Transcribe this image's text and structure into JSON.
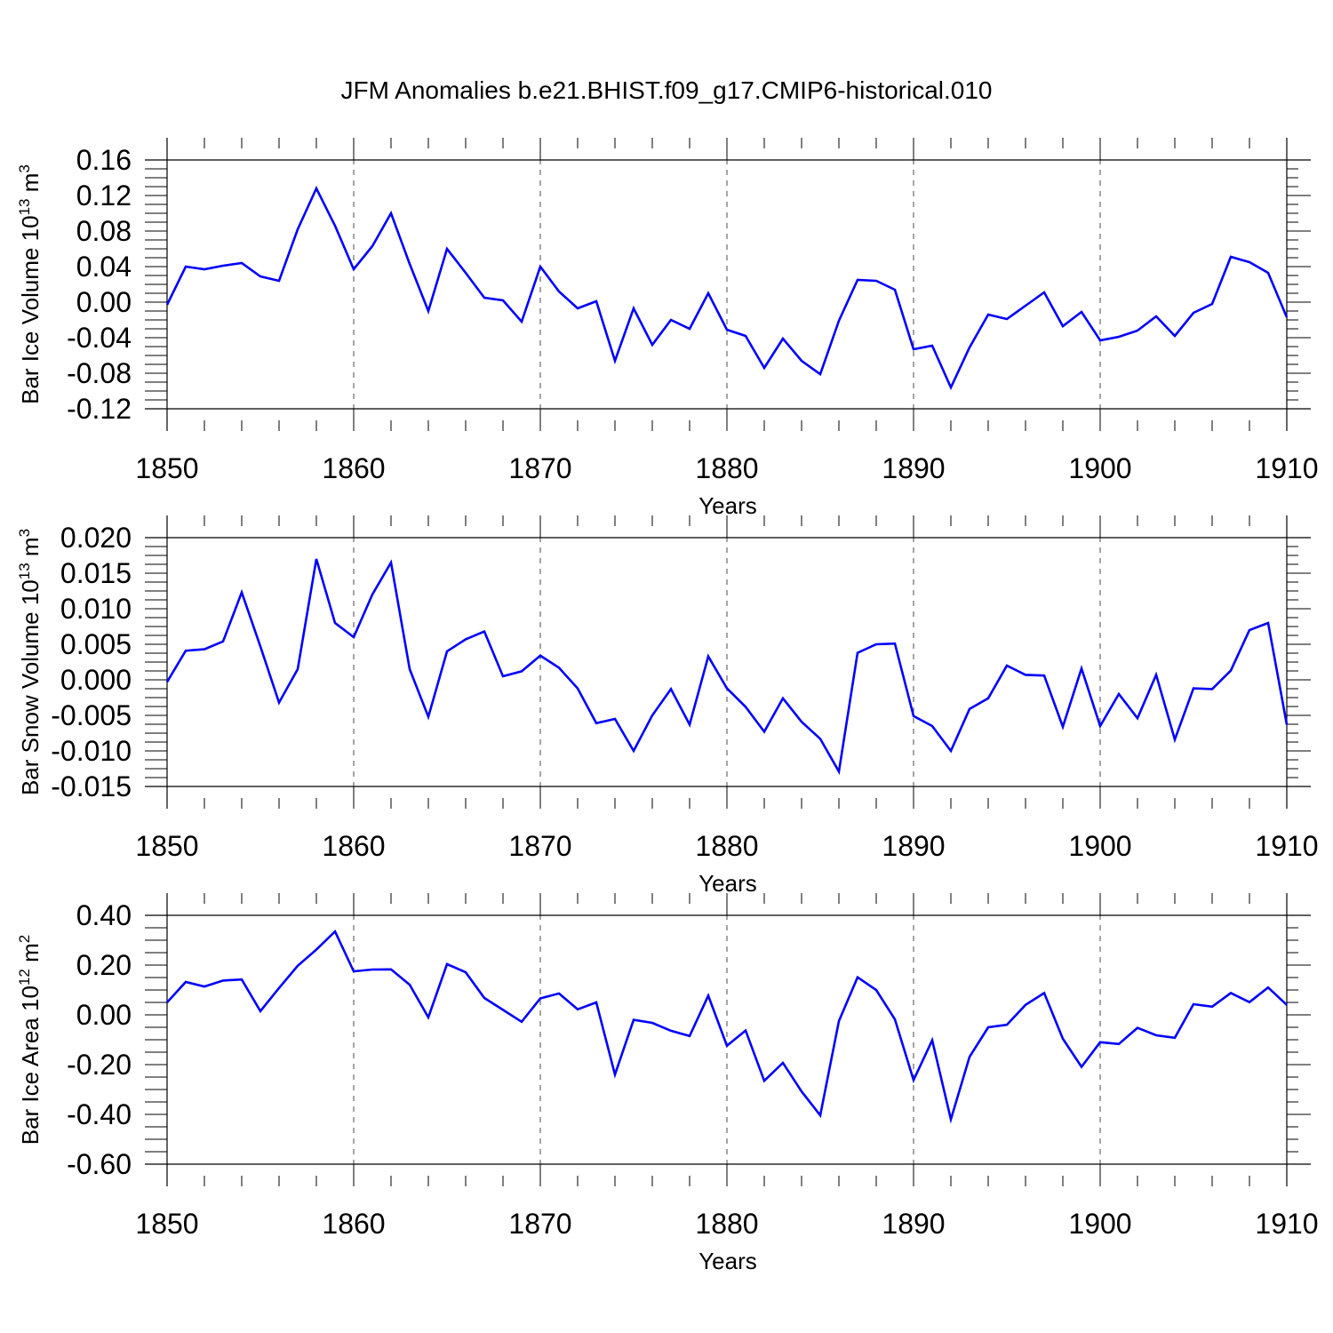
{
  "title": "JFM Anomalies b.e21.BHIST.f09_g17.CMIP6-historical.010",
  "colors": {
    "line": "#0000ff",
    "axis": "#000000"
  },
  "chart_data": [
    {
      "type": "line",
      "xlabel": "Years",
      "ylabel": "Bar Ice Volume 10",
      "ylabel_exp": "13",
      "ylabel_unit": " m",
      "ylabel_unit_exp": "3",
      "xlim": [
        1850,
        1910
      ],
      "ylim": [
        -0.12,
        0.16
      ],
      "xticks": [
        "1850",
        "1860",
        "1870",
        "1880",
        "1890",
        "1900",
        "1910"
      ],
      "yticks": [
        "0.16",
        "0.12",
        "0.08",
        "0.04",
        "0.00",
        "-0.04",
        "-0.08",
        "-0.12"
      ],
      "ytick_values": [
        0.16,
        0.12,
        0.08,
        0.04,
        0.0,
        -0.04,
        -0.08,
        -0.12
      ],
      "grid": "vertical dashed at major x ticks",
      "x_start": 1850,
      "values": [
        -0.003,
        0.04,
        0.037,
        0.041,
        0.044,
        0.029,
        0.024,
        0.082,
        0.128,
        0.086,
        0.037,
        0.063,
        0.1,
        0.043,
        -0.01,
        0.06,
        0.033,
        0.005,
        0.002,
        -0.022,
        0.04,
        0.012,
        -0.007,
        0.001,
        -0.066,
        -0.007,
        -0.048,
        -0.02,
        -0.03,
        0.01,
        -0.031,
        -0.038,
        -0.074,
        -0.041,
        -0.066,
        -0.081,
        -0.021,
        0.025,
        0.024,
        0.014,
        -0.053,
        -0.049,
        -0.096,
        -0.051,
        -0.014,
        -0.019,
        -0.004,
        0.011,
        -0.027,
        -0.011,
        -0.043,
        -0.039,
        -0.032,
        -0.016,
        -0.038,
        -0.012,
        -0.002,
        0.051,
        0.045,
        0.033,
        -0.017
      ]
    },
    {
      "type": "line",
      "xlabel": "Years",
      "ylabel": "Bar Snow Volume 10",
      "ylabel_exp": "13",
      "ylabel_unit": " m",
      "ylabel_unit_exp": "3",
      "xlim": [
        1850,
        1910
      ],
      "ylim": [
        -0.015,
        0.02
      ],
      "xticks": [
        "1850",
        "1860",
        "1870",
        "1880",
        "1890",
        "1900",
        "1910"
      ],
      "yticks": [
        "0.020",
        "0.015",
        "0.010",
        "0.005",
        "0.000",
        "-0.005",
        "-0.010",
        "-0.015"
      ],
      "ytick_values": [
        0.02,
        0.015,
        0.01,
        0.005,
        0.0,
        -0.005,
        -0.01,
        -0.015
      ],
      "grid": "vertical dashed at major x ticks",
      "x_start": 1850,
      "values": [
        -0.0003,
        0.0041,
        0.0043,
        0.0054,
        0.0123,
        0.0047,
        -0.0032,
        0.0015,
        0.017,
        0.008,
        0.006,
        0.012,
        0.0165,
        0.0015,
        -0.0052,
        0.004,
        0.0057,
        0.0068,
        0.0005,
        0.0012,
        0.0034,
        0.0017,
        -0.0012,
        -0.0061,
        -0.0055,
        -0.01,
        -0.005,
        -0.0013,
        -0.0063,
        0.0033,
        -0.0012,
        -0.0038,
        -0.0073,
        -0.0026,
        -0.0059,
        -0.0083,
        -0.0129,
        0.0038,
        0.005,
        0.0051,
        -0.0051,
        -0.0065,
        -0.01,
        -0.0041,
        -0.0026,
        0.002,
        0.0007,
        0.0006,
        -0.0066,
        0.0016,
        -0.0065,
        -0.002,
        -0.0054,
        0.0007,
        -0.0084,
        -0.0012,
        -0.0013,
        0.0013,
        0.007,
        0.008,
        -0.0063
      ]
    },
    {
      "type": "line",
      "xlabel": "Years",
      "ylabel": "Bar Ice Area 10",
      "ylabel_exp": "12",
      "ylabel_unit": " m",
      "ylabel_unit_exp": "2",
      "xlim": [
        1850,
        1910
      ],
      "ylim": [
        -0.6,
        0.4
      ],
      "xticks": [
        "1850",
        "1860",
        "1870",
        "1880",
        "1890",
        "1900",
        "1910"
      ],
      "yticks": [
        "0.40",
        "0.20",
        "0.00",
        "-0.20",
        "-0.40",
        "-0.60"
      ],
      "ytick_values": [
        0.4,
        0.2,
        0.0,
        -0.2,
        -0.4,
        -0.6
      ],
      "grid": "vertical dashed at major x ticks",
      "x_start": 1850,
      "values": [
        0.05,
        0.132,
        0.114,
        0.138,
        0.142,
        0.015,
        0.108,
        0.197,
        0.262,
        0.335,
        0.175,
        0.182,
        0.183,
        0.121,
        -0.01,
        0.204,
        0.171,
        0.068,
        0.02,
        -0.028,
        0.066,
        0.086,
        0.022,
        0.05,
        -0.24,
        -0.02,
        -0.032,
        -0.064,
        -0.085,
        0.077,
        -0.124,
        -0.063,
        -0.265,
        -0.193,
        -0.308,
        -0.404,
        -0.025,
        0.151,
        0.1,
        -0.018,
        -0.262,
        -0.102,
        -0.42,
        -0.169,
        -0.05,
        -0.04,
        0.04,
        0.088,
        -0.096,
        -0.209,
        -0.11,
        -0.117,
        -0.052,
        -0.082,
        -0.092,
        0.043,
        0.033,
        0.088,
        0.051,
        0.11,
        0.04
      ]
    }
  ]
}
